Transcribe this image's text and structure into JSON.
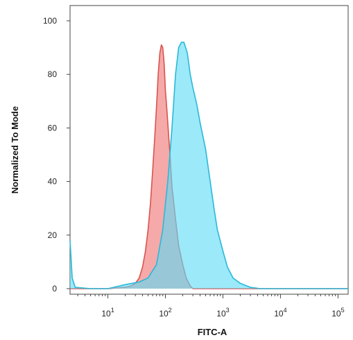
{
  "chart_data": {
    "type": "area",
    "xlabel": "FITC-A",
    "ylabel": "Normalized To Mode",
    "x_scale": "log",
    "xlim": [
      2.2,
      150000
    ],
    "ylim": [
      0,
      105
    ],
    "grid": false,
    "legend": "none",
    "y_ticks": [
      "0",
      "20",
      "40",
      "60",
      "80",
      "100"
    ],
    "y_tick_values": [
      0,
      20,
      40,
      60,
      80,
      100
    ],
    "x_ticks": [
      {
        "value": 10,
        "base": "10",
        "exp": "1"
      },
      {
        "value": 100,
        "base": "10",
        "exp": "2"
      },
      {
        "value": 1000,
        "base": "10",
        "exp": "3"
      },
      {
        "value": 10000,
        "base": "10",
        "exp": "4"
      },
      {
        "value": 100000,
        "base": "10",
        "exp": "5"
      }
    ],
    "series": [
      {
        "fill": "#f4a0a0",
        "stroke": "#d9534f",
        "points": [
          [
            2.2,
            0
          ],
          [
            10,
            0
          ],
          [
            20,
            0.5
          ],
          [
            25,
            1
          ],
          [
            30,
            2
          ],
          [
            35,
            4
          ],
          [
            40,
            8
          ],
          [
            45,
            14
          ],
          [
            50,
            22
          ],
          [
            55,
            32
          ],
          [
            60,
            44
          ],
          [
            65,
            56
          ],
          [
            70,
            68
          ],
          [
            75,
            80
          ],
          [
            80,
            88
          ],
          [
            85,
            91
          ],
          [
            90,
            90
          ],
          [
            95,
            84
          ],
          [
            100,
            74
          ],
          [
            105,
            68
          ],
          [
            110,
            62
          ],
          [
            120,
            50
          ],
          [
            130,
            38
          ],
          [
            150,
            26
          ],
          [
            170,
            16
          ],
          [
            200,
            9
          ],
          [
            230,
            4
          ],
          [
            270,
            1
          ],
          [
            300,
            0
          ],
          [
            150000,
            0
          ]
        ]
      },
      {
        "fill": "#5fdcf5",
        "stroke": "#2ab8d8",
        "points": [
          [
            2.2,
            18
          ],
          [
            2.4,
            4
          ],
          [
            2.7,
            0.5
          ],
          [
            5,
            0
          ],
          [
            10,
            0
          ],
          [
            20,
            1.5
          ],
          [
            35,
            2.5
          ],
          [
            50,
            4
          ],
          [
            70,
            9
          ],
          [
            90,
            22
          ],
          [
            110,
            40
          ],
          [
            130,
            60
          ],
          [
            150,
            80
          ],
          [
            170,
            90
          ],
          [
            190,
            92
          ],
          [
            210,
            92
          ],
          [
            240,
            88
          ],
          [
            270,
            80
          ],
          [
            300,
            75
          ],
          [
            350,
            69
          ],
          [
            400,
            62
          ],
          [
            500,
            52
          ],
          [
            600,
            40
          ],
          [
            700,
            30
          ],
          [
            800,
            22
          ],
          [
            1000,
            14
          ],
          [
            1200,
            8
          ],
          [
            1500,
            4
          ],
          [
            2000,
            2
          ],
          [
            3000,
            0.5
          ],
          [
            4500,
            0
          ],
          [
            150000,
            0
          ]
        ]
      }
    ]
  }
}
